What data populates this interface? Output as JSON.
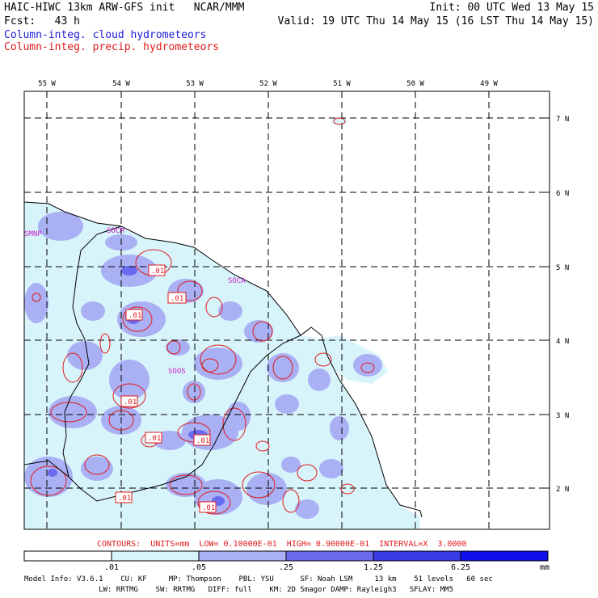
{
  "header": {
    "line1_left": "HAIC-HIWC 13km ARW-GFS init   NCAR/MMM",
    "line1_right": "Init: 00 UTC Wed 13 May 15",
    "line2_left": "Fcst:   43 h",
    "line2_right": "Valid: 19 UTC Thu 14 May 15 (16 LST Thu 14 May 15)",
    "line3": "Column-integ. cloud hydrometeors",
    "line4": "Column-integ. precip. hydrometeors"
  },
  "map": {
    "lon_labels": [
      "55 W",
      "54 W",
      "53 W",
      "52 W",
      "51 W",
      "50 W",
      "49 W"
    ],
    "lat_labels": [
      "7 N",
      "6 N",
      "5 N",
      "4 N",
      "3 N",
      "2 N"
    ],
    "stations": [
      "SMNP",
      "SOCM",
      "SOCA",
      "SOOS"
    ],
    "contour_labels": [
      ".01",
      ".01",
      ".01",
      ".01",
      ".01",
      ".01",
      ".01",
      ".01"
    ]
  },
  "contours_caption": "CONTOURS:  UNITS=mm  LOW= 0.10000E-01  HIGH= 0.90000E-01  INTERVAL=X  3.0000",
  "colorbar": {
    "ticks": [
      ".01",
      ".05",
      ".25",
      "1.25",
      "6.25"
    ],
    "unit": "mm",
    "colors": [
      "#ffffff",
      "#d8f4fb",
      "#aab0f4",
      "#6b6bf0",
      "#3a3ae6",
      "#1010ee"
    ]
  },
  "footer": {
    "line1": "Model Info: V3.6.1    CU: KF     MP: Thompson    PBL: YSU      SF: Noah LSM     13 km    51 levels   60 sec",
    "line2": "                 LW: RRTMG    SW: RRTMG   DIFF: full    KM: 2D Smagor DAMP: Rayleigh3   SFLAY: MM5"
  },
  "colors": {
    "cloud_title": "#1a1ad6",
    "precip_title": "#e01a1a",
    "station": "#cc22cc",
    "contour": "#e01a1a",
    "light_fill": "#d8f4fb",
    "mid_fill": "#aab0f4",
    "dark_fill": "#6b6bf0"
  }
}
